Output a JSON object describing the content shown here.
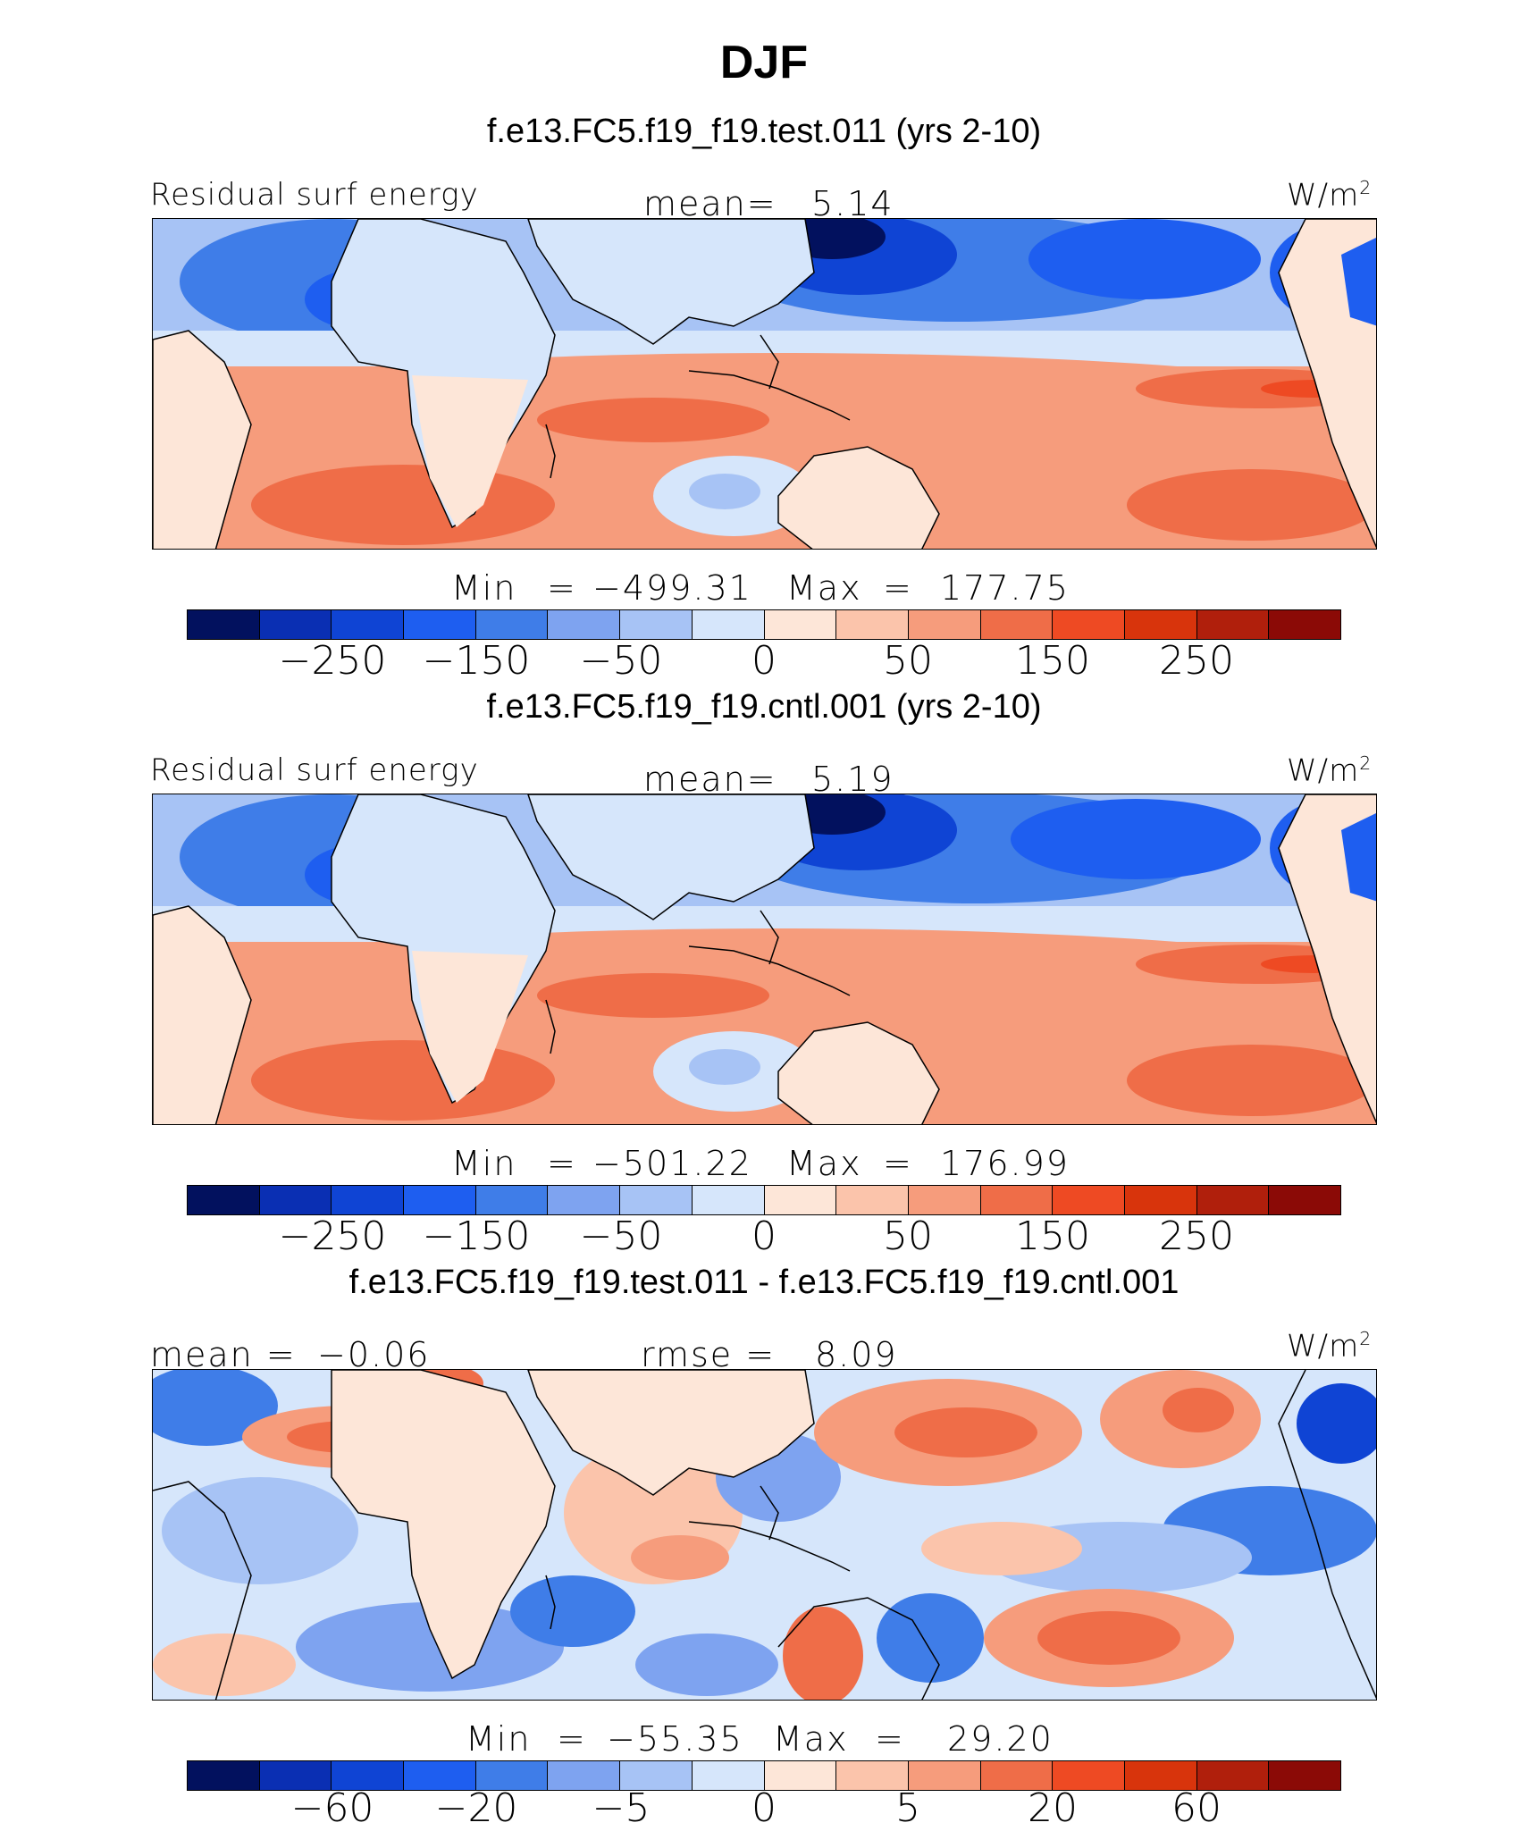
{
  "title": "DJF",
  "units_label": "W/m",
  "units_sup": "2",
  "palette": [
    "#02115e",
    "#0a2fb3",
    "#0f44d4",
    "#1e5ef0",
    "#3f7de8",
    "#7ea3f0",
    "#a7c3f5",
    "#d6e6fb",
    "#fde6d8",
    "#fbc4ab",
    "#f69c7c",
    "#ef6d48",
    "#ee4a23",
    "#d8340c",
    "#b01f0c",
    "#8b0a06"
  ],
  "colors": {
    "land": "#fde6d8",
    "coast": "#000000"
  },
  "panels": [
    {
      "case_title": "f.e13.FC5.f19_f19.test.011 (yrs 2-10)",
      "variable": "Residual surf energy",
      "stat_label": "mean=",
      "stat_value": "5.14",
      "min_label": "Min",
      "min_value": "−499.31",
      "max_label": "Max",
      "max_value": "177.75",
      "cbar_ticks": [
        "−250",
        "−150",
        "−50",
        "0",
        "50",
        "150",
        "250"
      ]
    },
    {
      "case_title": "f.e13.FC5.f19_f19.cntl.001 (yrs 2-10)",
      "variable": "Residual surf energy",
      "stat_label": "mean=",
      "stat_value": "5.19",
      "min_label": "Min",
      "min_value": "−501.22",
      "max_label": "Max",
      "max_value": "176.99",
      "cbar_ticks": [
        "−250",
        "−150",
        "−50",
        "0",
        "50",
        "150",
        "250"
      ]
    },
    {
      "case_title": "f.e13.FC5.f19_f19.test.011 - f.e13.FC5.f19_f19.cntl.001",
      "left_label": "mean =",
      "left_value": "−0.06",
      "stat_label": "rmse =",
      "stat_value": "8.09",
      "min_label": "Min",
      "min_value": "−55.35",
      "max_label": "Max",
      "max_value": "29.20",
      "cbar_ticks": [
        "−60",
        "−20",
        "−5",
        "0",
        "5",
        "20",
        "60"
      ]
    }
  ],
  "chart_data": [
    {
      "type": "heatmap",
      "title": "Residual surf energy (f.e13.FC5.f19_f19.test.011, yrs 2-10)",
      "units": "W/m2",
      "mean": 5.14,
      "min": -499.31,
      "max": 177.75,
      "contour_levels": [
        -300,
        -250,
        -200,
        -150,
        -100,
        -50,
        -25,
        0,
        25,
        50,
        100,
        150,
        200,
        250,
        300
      ]
    },
    {
      "type": "heatmap",
      "title": "Residual surf energy (f.e13.FC5.f19_f19.cntl.001, yrs 2-10)",
      "units": "W/m2",
      "mean": 5.19,
      "min": -501.22,
      "max": 176.99,
      "contour_levels": [
        -300,
        -250,
        -200,
        -150,
        -100,
        -50,
        -25,
        0,
        25,
        50,
        100,
        150,
        200,
        250,
        300
      ]
    },
    {
      "type": "heatmap",
      "title": "f.e13.FC5.f19_f19.test.011 - f.e13.FC5.f19_f19.cntl.001",
      "units": "W/m2",
      "mean": -0.06,
      "rmse": 8.09,
      "min": -55.35,
      "max": 29.2,
      "contour_levels": [
        -80,
        -60,
        -40,
        -20,
        -10,
        -5,
        -2,
        0,
        2,
        5,
        10,
        20,
        40,
        60,
        80
      ]
    }
  ]
}
